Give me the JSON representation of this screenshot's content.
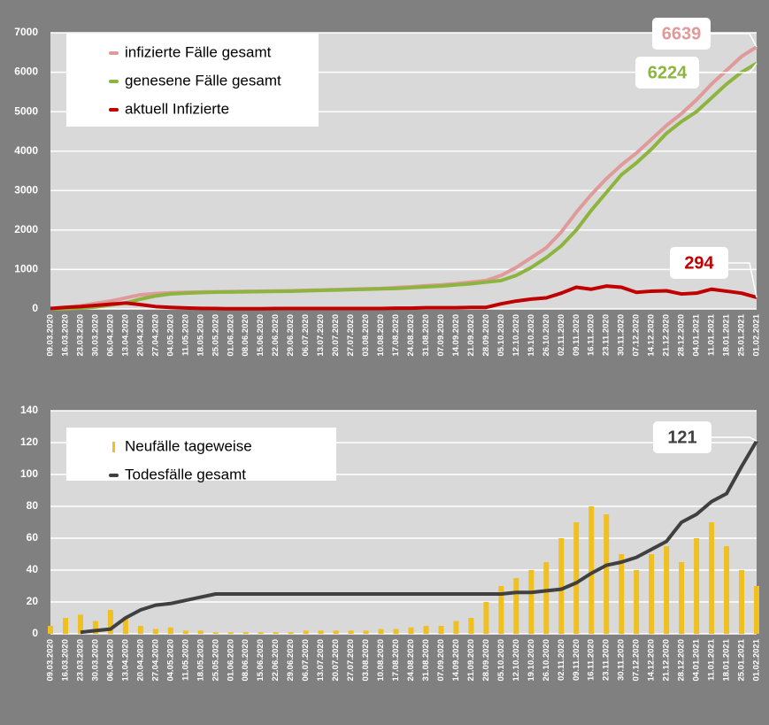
{
  "chart_data": [
    {
      "type": "line",
      "x": [
        "09.03.2020",
        "16.03.2020",
        "23.03.2020",
        "30.03.2020",
        "06.04.2020",
        "13.04.2020",
        "20.04.2020",
        "27.04.2020",
        "04.05.2020",
        "11.05.2020",
        "18.05.2020",
        "25.05.2020",
        "01.06.2020",
        "08.06.2020",
        "15.06.2020",
        "22.06.2020",
        "29.06.2020",
        "06.07.2020",
        "13.07.2020",
        "20.07.2020",
        "27.07.2020",
        "03.08.2020",
        "10.08.2020",
        "17.08.2020",
        "24.08.2020",
        "31.08.2020",
        "07.09.2020",
        "14.09.2020",
        "21.09.2020",
        "28.09.2020",
        "05.10.2020",
        "12.10.2020",
        "19.10.2020",
        "26.10.2020",
        "02.11.2020",
        "09.11.2020",
        "16.11.2020",
        "23.11.2020",
        "30.11.2020",
        "07.12.2020",
        "14.12.2020",
        "21.12.2020",
        "28.12.2020",
        "04.01.2021",
        "11.01.2021",
        "18.01.2021",
        "25.01.2021",
        "01.02.2021"
      ],
      "series": [
        {
          "name": "infizierte Fälle gesamt",
          "color": "#e09a9a",
          "values": [
            10,
            40,
            80,
            140,
            200,
            280,
            360,
            390,
            410,
            420,
            430,
            435,
            440,
            445,
            450,
            455,
            460,
            470,
            480,
            490,
            500,
            510,
            520,
            540,
            560,
            590,
            610,
            640,
            680,
            720,
            850,
            1050,
            1300,
            1550,
            1950,
            2450,
            2900,
            3300,
            3650,
            3950,
            4300,
            4650,
            4950,
            5300,
            5700,
            6050,
            6400,
            6639
          ]
        },
        {
          "name": "genesene Fälle gesamt",
          "color": "#8db43e",
          "values": [
            0,
            0,
            20,
            50,
            100,
            150,
            250,
            330,
            380,
            400,
            415,
            425,
            430,
            435,
            440,
            445,
            450,
            460,
            470,
            480,
            490,
            500,
            510,
            520,
            540,
            560,
            580,
            610,
            640,
            680,
            720,
            850,
            1050,
            1300,
            1600,
            2000,
            2500,
            2950,
            3400,
            3700,
            4050,
            4450,
            4750,
            5000,
            5350,
            5700,
            6000,
            6224
          ]
        },
        {
          "name": "aktuell Infizierte",
          "color": "#c00000",
          "values": [
            10,
            40,
            60,
            90,
            120,
            150,
            110,
            60,
            40,
            25,
            15,
            10,
            5,
            5,
            5,
            10,
            10,
            10,
            10,
            10,
            10,
            10,
            10,
            20,
            20,
            30,
            30,
            30,
            40,
            40,
            130,
            200,
            250,
            280,
            400,
            550,
            500,
            580,
            550,
            420,
            450,
            460,
            380,
            400,
            500,
            450,
            400,
            294
          ]
        }
      ],
      "ylim": [
        0,
        7000
      ],
      "yticks": [
        0,
        1000,
        2000,
        3000,
        4000,
        5000,
        6000,
        7000
      ],
      "grid": true
    },
    {
      "type": "bar_line",
      "x": [
        "09.03.2020",
        "16.03.2020",
        "23.03.2020",
        "30.03.2020",
        "06.04.2020",
        "13.04.2020",
        "20.04.2020",
        "27.04.2020",
        "04.05.2020",
        "11.05.2020",
        "18.05.2020",
        "25.05.2020",
        "01.06.2020",
        "08.06.2020",
        "15.06.2020",
        "22.06.2020",
        "29.06.2020",
        "06.07.2020",
        "13.07.2020",
        "20.07.2020",
        "27.07.2020",
        "03.08.2020",
        "10.08.2020",
        "17.08.2020",
        "24.08.2020",
        "31.08.2020",
        "07.09.2020",
        "14.09.2020",
        "21.09.2020",
        "28.09.2020",
        "05.10.2020",
        "12.10.2020",
        "19.10.2020",
        "26.10.2020",
        "02.11.2020",
        "09.11.2020",
        "16.11.2020",
        "23.11.2020",
        "30.11.2020",
        "07.12.2020",
        "14.12.2020",
        "21.12.2020",
        "28.12.2020",
        "04.01.2021",
        "11.01.2021",
        "18.01.2021",
        "25.01.2021",
        "01.02.2021"
      ],
      "series": [
        {
          "name": "Neufälle tageweise",
          "color": "#f0c020",
          "kind": "bar",
          "values": [
            5,
            10,
            12,
            8,
            15,
            10,
            5,
            3,
            4,
            2,
            2,
            1,
            1,
            1,
            1,
            1,
            1,
            2,
            2,
            2,
            2,
            2,
            3,
            3,
            4,
            5,
            5,
            8,
            10,
            20,
            30,
            35,
            40,
            45,
            60,
            70,
            80,
            75,
            50,
            40,
            50,
            55,
            45,
            60,
            70,
            55,
            40,
            30
          ]
        },
        {
          "name": "Todesfälle gesamt",
          "color": "#404040",
          "kind": "line",
          "values": [
            null,
            null,
            1,
            2,
            3,
            10,
            15,
            18,
            19,
            21,
            23,
            25,
            25,
            25,
            25,
            25,
            25,
            25,
            25,
            25,
            25,
            25,
            25,
            25,
            25,
            25,
            25,
            25,
            25,
            25,
            25,
            26,
            26,
            27,
            28,
            32,
            38,
            43,
            45,
            48,
            53,
            58,
            70,
            75,
            83,
            88,
            105,
            121
          ]
        }
      ],
      "ylim": [
        0,
        140
      ],
      "yticks": [
        0,
        20,
        40,
        60,
        80,
        100,
        120,
        140
      ],
      "grid": true
    }
  ]
}
